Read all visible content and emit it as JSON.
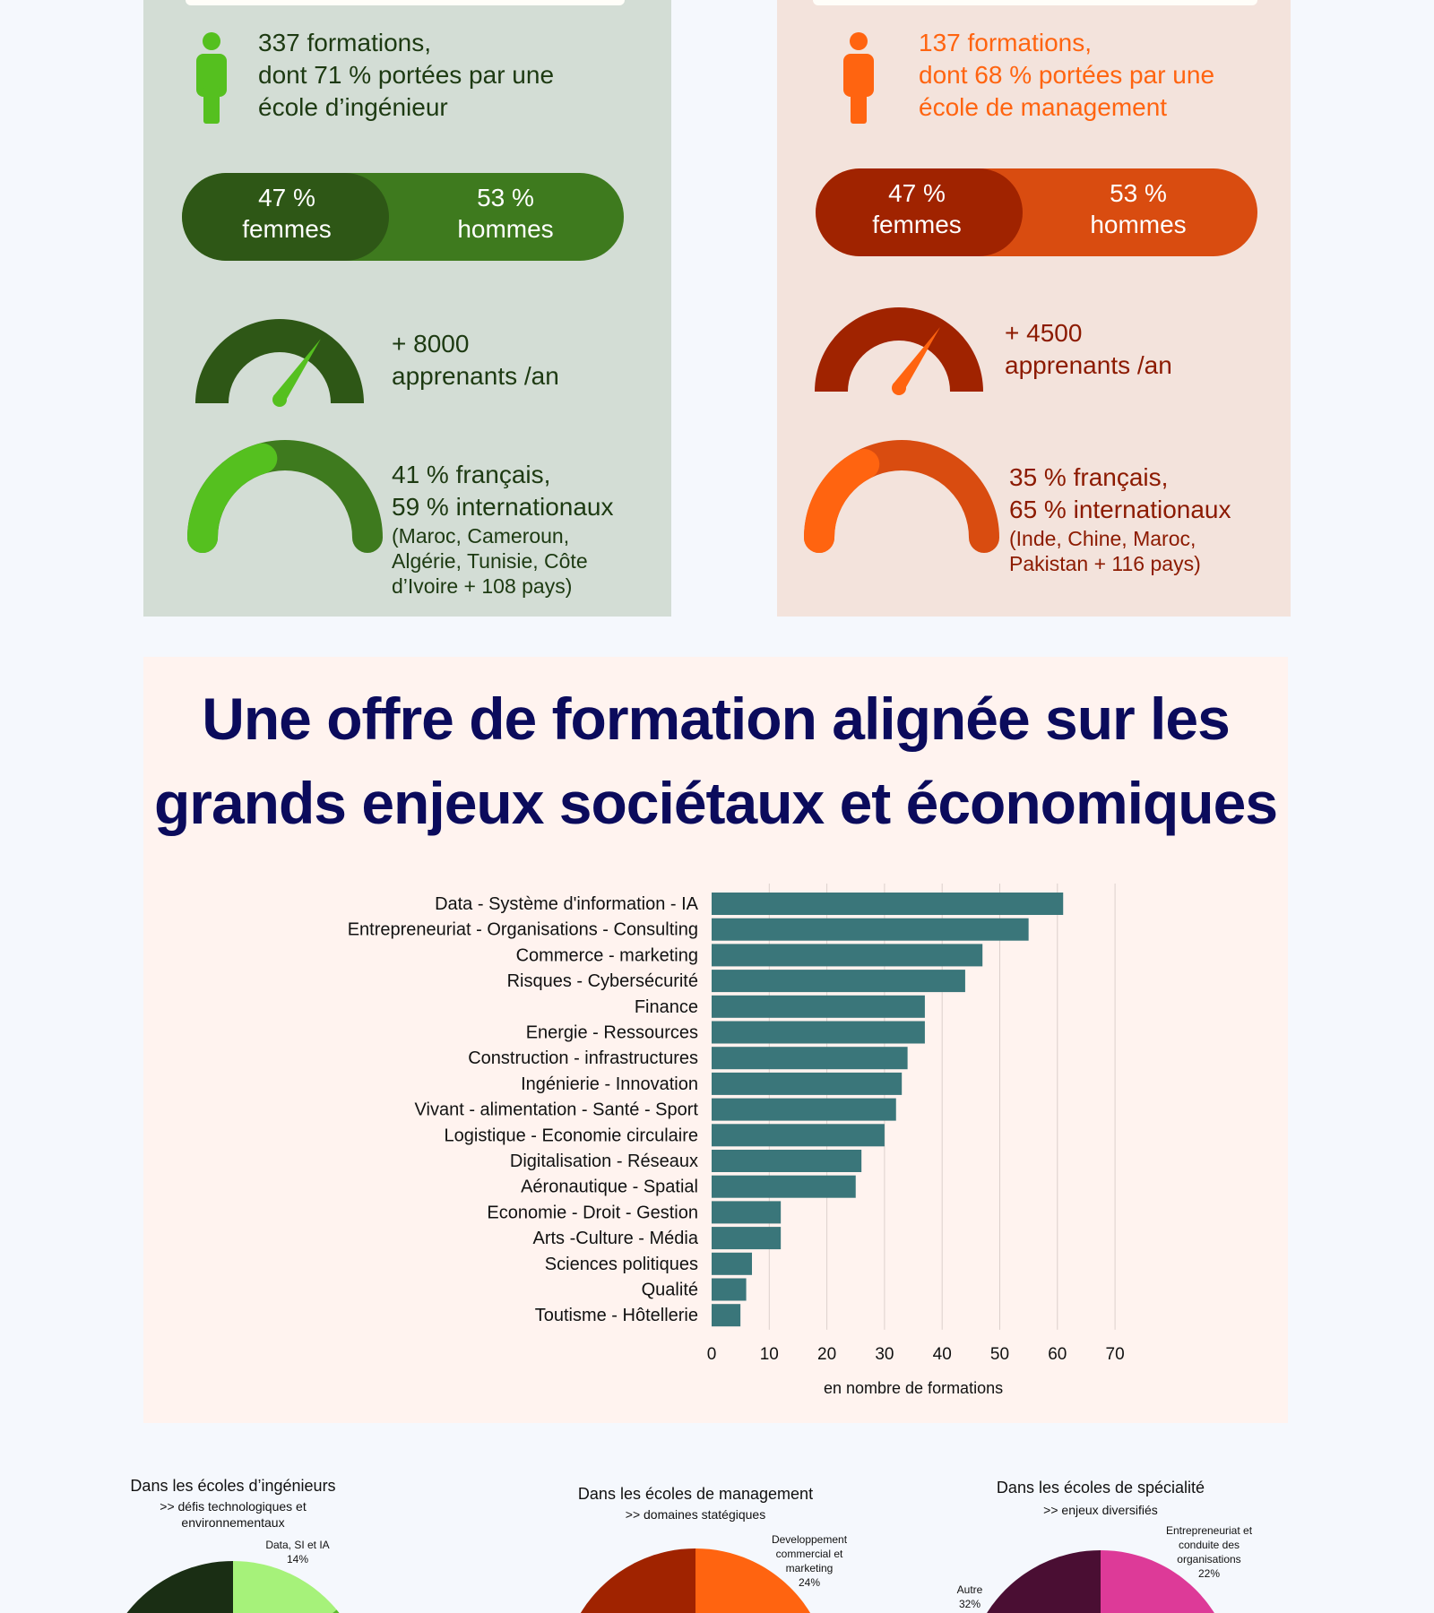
{
  "left_panel": {
    "formations_lines": [
      "337 formations,",
      "dont 71 % portées par une",
      "école d’ingénieur"
    ],
    "gender": {
      "women_pct": "47 %",
      "women_label": "femmes",
      "men_pct": "53 %",
      "men_label": "hommes",
      "women_value": 47
    },
    "learners_lines": [
      "+ 8000",
      "apprenants /an"
    ],
    "nationality_lines": [
      "41 % français,",
      "59 % internationaux"
    ],
    "nationality_detail": [
      "(Maroc, Cameroun,",
      "Algérie, Tunisie, Côte",
      "d’Ivoire + 108 pays)"
    ],
    "french_value": 41,
    "colors": {
      "bg": "#d3ddd5",
      "accent": "#55c01f",
      "dark": "#2e5716",
      "mid": "#3e7a1e",
      "text": "#1d3a12"
    }
  },
  "right_panel": {
    "formations_lines": [
      "137 formations,",
      "dont 68 % portées par une",
      "école de management"
    ],
    "gender": {
      "women_pct": "47 %",
      "women_label": "femmes",
      "men_pct": "53 %",
      "men_label": "hommes",
      "women_value": 47
    },
    "learners_lines": [
      "+ 4500",
      "apprenants /an"
    ],
    "nationality_lines": [
      "35 % français,",
      "65 % internationaux"
    ],
    "nationality_detail": [
      "(Inde, Chine, Maroc,",
      "Pakistan + 116 pays)"
    ],
    "french_value": 35,
    "colors": {
      "bg": "#f3e3dc",
      "accent": "#ff6410",
      "dark": "#a02300",
      "mid": "#d94c10",
      "text": "#8c1a00"
    }
  },
  "section": {
    "title_lines": [
      "Une offre de formation alignée sur les",
      "grands enjeux sociétaux et économiques"
    ]
  },
  "chart_data": {
    "type": "bar",
    "orientation": "horizontal",
    "categories": [
      "Data - Système d'information - IA",
      "Entrepreneuriat - Organisations - Consulting",
      "Commerce - marketing",
      "Risques - Cybersécurité",
      "Finance",
      "Energie - Ressources",
      "Construction - infrastructures",
      "Ingénierie - Innovation",
      "Vivant - alimentation - Santé - Sport",
      "Logistique - Economie circulaire",
      "Digitalisation - Réseaux",
      "Aéronautique - Spatial",
      "Economie - Droit - Gestion",
      "Arts -Culture - Média",
      "Sciences politiques",
      "Qualité",
      "Toutisme - Hôtellerie"
    ],
    "values": [
      61,
      55,
      47,
      44,
      37,
      37,
      34,
      33,
      32,
      30,
      26,
      25,
      12,
      12,
      7,
      6,
      5
    ],
    "xlabel": "en nombre de formations",
    "xlim": [
      0,
      70
    ],
    "xticks": [
      "0",
      "10",
      "20",
      "30",
      "40",
      "50",
      "60",
      "70"
    ],
    "grid": true,
    "bar_color": "#3a767a"
  },
  "pies": [
    {
      "title": "Dans les écoles d’ingénieurs",
      "subtitle": [
        ">> défis technologiques et",
        "environnementaux"
      ],
      "label": [
        "Data, SI et IA",
        "14%"
      ],
      "value": 14,
      "colors": [
        "#a6f27a",
        "#5ab82a",
        "#1a2e14"
      ]
    },
    {
      "title": "Dans les écoles de management",
      "subtitle": [
        ">> domaines statégiques"
      ],
      "label": [
        "Developpement",
        "commercial et",
        "marketing",
        "24%"
      ],
      "value": 24,
      "colors": [
        "#ff6410",
        "#ff6410",
        "#a02300"
      ]
    },
    {
      "title": "Dans les écoles de spécialité",
      "subtitle": [
        ">> enjeux diversifiés"
      ],
      "label": [
        "Entrepreneuriat et",
        "conduite des",
        "organisations",
        "22%"
      ],
      "value": 22,
      "colors": [
        "#dd3a98",
        "#dd3a98",
        "#4a0e33"
      ],
      "other_label": [
        "Autre",
        "32%"
      ],
      "other_value": 32
    }
  ]
}
